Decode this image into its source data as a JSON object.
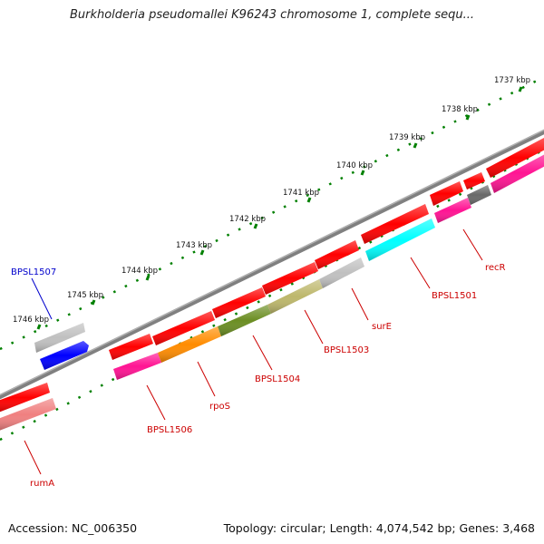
{
  "title": "Burkholderia pseudomallei K96243 chromosome 1, complete sequ...",
  "footer": {
    "accession": "Accession: NC_006350",
    "summary": "Topology: circular; Length: 4,074,542 bp; Genes: 3,468"
  },
  "scale_labels": [
    "1737 kbp",
    "1738 kbp",
    "1739 kbp",
    "1740 kbp",
    "1741 kbp",
    "1742 kbp",
    "1743 kbp",
    "1744 kbp",
    "1745 kbp",
    "1746 kbp"
  ],
  "gene_labels": [
    {
      "text": "BPSL1507",
      "color": "#0000cc"
    },
    {
      "text": "rumA",
      "color": "#cc0000"
    },
    {
      "text": "BPSL1506",
      "color": "#cc0000"
    },
    {
      "text": "rpoS",
      "color": "#cc0000"
    },
    {
      "text": "BPSL1504",
      "color": "#cc0000"
    },
    {
      "text": "BPSL1503",
      "color": "#cc0000"
    },
    {
      "text": "surE",
      "color": "#cc0000"
    },
    {
      "text": "BPSL1501",
      "color": "#cc0000"
    },
    {
      "text": "recR",
      "color": "#cc0000"
    }
  ],
  "colors": {
    "backbone": "#808080",
    "cds": "#ff0000",
    "tick": "#008000",
    "gene_blue": "#0000ff",
    "gene_pink": "#ff1493",
    "gene_orange": "#ff8c00",
    "gene_olive": "#6b8e23",
    "gene_khaki": "#bdb76b",
    "gene_lightgray": "#c0c0c0",
    "gene_darkgray": "#696969",
    "gene_cyan": "#00ffff",
    "gene_salmon": "#f08080"
  }
}
